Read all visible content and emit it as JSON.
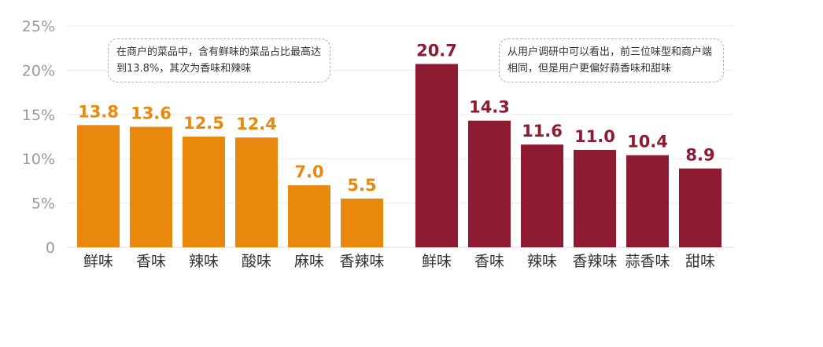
{
  "chart_data": [
    {
      "type": "bar",
      "categories": [
        "鲜味",
        "香味",
        "辣味",
        "酸味",
        "麻味",
        "香辣味"
      ],
      "values": [
        13.8,
        13.6,
        12.5,
        12.4,
        7.0,
        5.5
      ],
      "value_labels": [
        "13.8",
        "13.6",
        "12.5",
        "12.4",
        "7.0",
        "5.5"
      ],
      "color": "#E8890E",
      "ylim": [
        0,
        25
      ],
      "yticks": [
        "0",
        "5%",
        "10%",
        "15%",
        "20%",
        "25%"
      ],
      "grid": true,
      "annotation": "在商户的菜品中，含有鲜味的菜品占比最高达到13.8%，其次为香味和辣味"
    },
    {
      "type": "bar",
      "categories": [
        "鲜味",
        "香味",
        "辣味",
        "香辣味",
        "蒜香味",
        "甜味"
      ],
      "values": [
        20.7,
        14.3,
        11.6,
        11.0,
        10.4,
        8.9
      ],
      "value_labels": [
        "20.7",
        "14.3",
        "11.6",
        "11.0",
        "10.4",
        "8.9"
      ],
      "color": "#8E1B32",
      "ylim": [
        0,
        25
      ],
      "grid": true,
      "annotation": "从用户调研中可以看出，前三位味型和商户端相同，但是用户更偏好蒜香味和甜味"
    }
  ]
}
